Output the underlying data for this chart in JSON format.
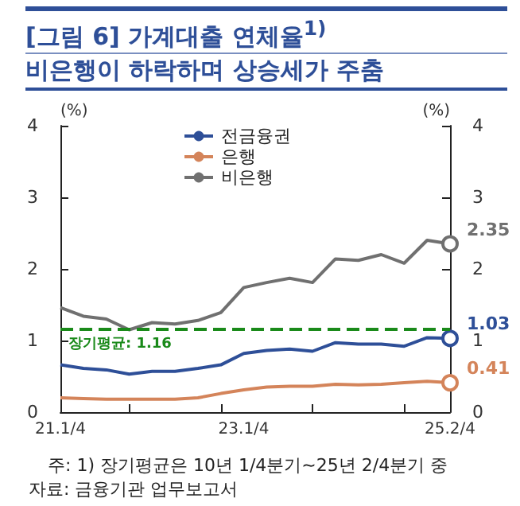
{
  "chart_data": {
    "type": "line",
    "title": "[그림 6] 가계대출 연체율$^{1)}$",
    "subtitle": "비은행이 하락하며 상승세가 주춤",
    "ylabel": "(%)",
    "y2label": "(%)",
    "categories": [
      "21.1/4",
      null,
      null,
      null,
      null,
      null,
      null,
      null,
      "23.1/4",
      null,
      null,
      null,
      null,
      null,
      null,
      null,
      null,
      "25.2/4"
    ],
    "series": [
      {
        "name": "전금융권",
        "color": "#2e4f98",
        "values": [
          0.66,
          0.61,
          0.59,
          0.53,
          0.57,
          0.57,
          0.61,
          0.66,
          0.82,
          0.86,
          0.88,
          0.85,
          0.97,
          0.95,
          0.95,
          0.92,
          1.04,
          1.03
        ],
        "value_labels": [
          null,
          null,
          null,
          null,
          null,
          null,
          null,
          null,
          null,
          null,
          null,
          null,
          null,
          null,
          null,
          null,
          null,
          "1.03"
        ]
      },
      {
        "name": "은행",
        "color": "#d4845a",
        "values": [
          0.2,
          0.19,
          0.18,
          0.18,
          0.18,
          0.18,
          0.2,
          0.26,
          0.31,
          0.35,
          0.36,
          0.36,
          0.39,
          0.38,
          0.39,
          0.41,
          0.43,
          0.41
        ],
        "value_labels": [
          null,
          null,
          null,
          null,
          null,
          null,
          null,
          null,
          null,
          null,
          null,
          null,
          null,
          null,
          null,
          null,
          null,
          "0.41"
        ]
      },
      {
        "name": "비은행",
        "color": "#707070",
        "values": [
          1.46,
          1.34,
          1.3,
          1.15,
          1.25,
          1.23,
          1.28,
          1.39,
          1.74,
          1.81,
          1.87,
          1.81,
          2.14,
          2.12,
          2.2,
          2.08,
          2.4,
          2.35
        ],
        "value_labels": [
          null,
          null,
          null,
          null,
          null,
          null,
          null,
          null,
          null,
          null,
          null,
          null,
          null,
          null,
          null,
          null,
          null,
          "2.35"
        ]
      }
    ],
    "ylim": [
      0,
      4
    ],
    "yticks": [
      0,
      1,
      2,
      3,
      4
    ],
    "y2lim": [
      0,
      4
    ],
    "y2ticks": [
      0,
      1,
      2,
      3,
      4
    ],
    "ref_lines": [
      {
        "axis": "y",
        "value": 1.16,
        "label": "장기평균: 1.16",
        "color": "#1a8a1a",
        "line_style": "dashed"
      }
    ],
    "grid": false,
    "legend": "top",
    "marker": "none",
    "annotations": [
      "주: 1) 장기평균은 10년 1/4분기~25년 2/4분기 중",
      "자료: 금융기관 업무보고서"
    ]
  }
}
